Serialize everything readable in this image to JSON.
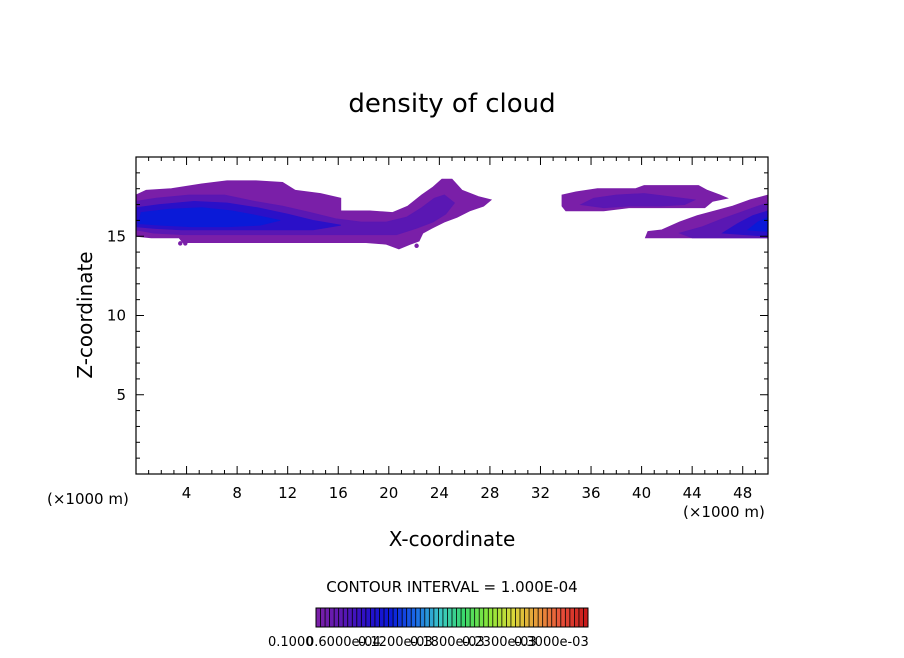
{
  "chart_data": {
    "type": "heatmap",
    "title": "density of cloud",
    "xlabel": "X-coordinate",
    "ylabel": "Z-coordinate",
    "x_unit": "(×1000 m)",
    "x_unit_right": "(×1000 m)",
    "xlim": [
      0,
      50
    ],
    "ylim": [
      0,
      20
    ],
    "x_ticks": [
      4,
      8,
      12,
      16,
      20,
      24,
      28,
      32,
      36,
      40,
      44,
      48
    ],
    "x_tick_labels": [
      "4",
      "8",
      "12",
      "16",
      "20",
      "24",
      "28",
      "32",
      "36",
      "40",
      "44",
      "48"
    ],
    "y_ticks": [
      5,
      10,
      15
    ],
    "y_tick_labels": [
      "5",
      "10",
      "15"
    ],
    "grid": false,
    "contour_interval_label": "CONTOUR INTERVAL = 1.000E-04",
    "colorbar_labels": [
      "0.1000",
      "0.6000e-04",
      "0.1200e-03",
      "0.1800e-03",
      "0.2300e-03",
      "0.3000e-03"
    ],
    "colormap": [
      "#7a1fa8",
      "#5a17b3",
      "#2a10c8",
      "#0a1ad8",
      "#1a6ae8",
      "#3ac8c8",
      "#3ad86a",
      "#8ae83a",
      "#d8d83a",
      "#e89a3a",
      "#e8503a",
      "#c81a1a"
    ],
    "regions": [
      {
        "name": "cloud-left",
        "levels": [
          {
            "color": "#7a1fa8",
            "polygon": [
              [
                0,
                15
              ],
              [
                0,
                17.6
              ],
              [
                0.8,
                17.9
              ],
              [
                2.8,
                18.0
              ],
              [
                5.2,
                18.3
              ],
              [
                7.2,
                18.5
              ],
              [
                9.5,
                18.5
              ],
              [
                11.6,
                18.4
              ],
              [
                12.6,
                17.9
              ],
              [
                14.6,
                17.7
              ],
              [
                16.2,
                17.4
              ],
              [
                16.2,
                16.6
              ],
              [
                18.5,
                16.6
              ],
              [
                20.3,
                16.5
              ],
              [
                21.5,
                16.9
              ],
              [
                22.6,
                17.6
              ],
              [
                23.5,
                18.1
              ],
              [
                24.2,
                18.6
              ],
              [
                25.0,
                18.6
              ],
              [
                25.8,
                17.9
              ],
              [
                27.1,
                17.5
              ],
              [
                28.1,
                17.3
              ],
              [
                27.5,
                16.9
              ],
              [
                26.4,
                16.6
              ],
              [
                25.4,
                16.2
              ],
              [
                24.4,
                15.9
              ],
              [
                23.4,
                15.5
              ],
              [
                22.7,
                15.2
              ],
              [
                22.4,
                14.7
              ],
              [
                21.7,
                14.5
              ],
              [
                20.8,
                14.2
              ],
              [
                19.8,
                14.5
              ],
              [
                18.2,
                14.6
              ],
              [
                14.0,
                14.6
              ],
              [
                10.0,
                14.6
              ],
              [
                5.8,
                14.6
              ],
              [
                4.2,
                14.6
              ],
              [
                3.7,
                14.6
              ],
              [
                3.4,
                14.9
              ],
              [
                2.8,
                14.9
              ],
              [
                1.2,
                14.9
              ]
            ]
          },
          {
            "color": "#5a17b3",
            "polygon": [
              [
                0,
                15.4
              ],
              [
                0,
                17.2
              ],
              [
                1.6,
                17.4
              ],
              [
                4.2,
                17.6
              ],
              [
                7.0,
                17.6
              ],
              [
                9.4,
                17.2
              ],
              [
                11.6,
                16.9
              ],
              [
                13.8,
                16.5
              ],
              [
                15.8,
                16.1
              ],
              [
                17.8,
                15.9
              ],
              [
                19.8,
                15.9
              ],
              [
                21.4,
                16.2
              ],
              [
                22.6,
                16.8
              ],
              [
                23.6,
                17.4
              ],
              [
                24.4,
                17.6
              ],
              [
                25.2,
                17.1
              ],
              [
                24.5,
                16.4
              ],
              [
                23.5,
                15.9
              ],
              [
                22.2,
                15.5
              ],
              [
                20.6,
                15.1
              ],
              [
                18.4,
                15.1
              ],
              [
                15.0,
                15.1
              ],
              [
                11.0,
                15.1
              ],
              [
                7.0,
                15.1
              ],
              [
                3.8,
                15.1
              ],
              [
                1.4,
                15.2
              ]
            ]
          },
          {
            "color": "#2a10c8",
            "polygon": [
              [
                0,
                15.6
              ],
              [
                0,
                16.8
              ],
              [
                1.8,
                17.0
              ],
              [
                4.6,
                17.2
              ],
              [
                7.2,
                17.1
              ],
              [
                9.6,
                16.8
              ],
              [
                12.0,
                16.4
              ],
              [
                14.0,
                16.0
              ],
              [
                16.2,
                15.7
              ],
              [
                14.0,
                15.4
              ],
              [
                11.0,
                15.4
              ],
              [
                7.0,
                15.4
              ],
              [
                3.6,
                15.4
              ],
              [
                1.4,
                15.5
              ]
            ]
          },
          {
            "color": "#0a1ad8",
            "polygon": [
              [
                0.2,
                15.8
              ],
              [
                0.4,
                16.5
              ],
              [
                2.6,
                16.7
              ],
              [
                5.2,
                16.8
              ],
              [
                7.6,
                16.6
              ],
              [
                9.6,
                16.3
              ],
              [
                11.4,
                16.0
              ],
              [
                9.8,
                15.7
              ],
              [
                7.2,
                15.6
              ],
              [
                4.4,
                15.6
              ],
              [
                2.0,
                15.7
              ]
            ]
          }
        ]
      },
      {
        "name": "cloud-middle-right",
        "levels": [
          {
            "color": "#7a1fa8",
            "polygon": [
              [
                33.7,
                17.6
              ],
              [
                34.8,
                17.8
              ],
              [
                36.5,
                18.0
              ],
              [
                39.5,
                18.0
              ],
              [
                40.2,
                18.2
              ],
              [
                44.5,
                18.2
              ],
              [
                45.2,
                17.9
              ],
              [
                46.2,
                17.6
              ],
              [
                46.8,
                17.4
              ],
              [
                45.6,
                17.2
              ],
              [
                45.0,
                16.8
              ],
              [
                41.5,
                16.8
              ],
              [
                39.0,
                16.8
              ],
              [
                37.0,
                16.6
              ],
              [
                35.0,
                16.6
              ],
              [
                34.0,
                16.6
              ],
              [
                33.7,
                16.9
              ]
            ]
          },
          {
            "color": "#5a17b3",
            "polygon": [
              [
                35.2,
                17.0
              ],
              [
                36.2,
                17.4
              ],
              [
                38.0,
                17.6
              ],
              [
                40.2,
                17.7
              ],
              [
                42.2,
                17.5
              ],
              [
                44.2,
                17.3
              ],
              [
                43.4,
                17.0
              ],
              [
                41.5,
                16.9
              ],
              [
                39.0,
                16.9
              ],
              [
                37.0,
                16.8
              ]
            ]
          }
        ]
      },
      {
        "name": "cloud-far-right",
        "levels": [
          {
            "color": "#7a1fa8",
            "polygon": [
              [
                40.3,
                14.9
              ],
              [
                40.5,
                15.3
              ],
              [
                41.6,
                15.4
              ],
              [
                43.0,
                15.9
              ],
              [
                44.4,
                16.3
              ],
              [
                45.8,
                16.6
              ],
              [
                47.2,
                16.9
              ],
              [
                48.6,
                17.3
              ],
              [
                50,
                17.6
              ],
              [
                50,
                14.9
              ]
            ]
          },
          {
            "color": "#5a17b3",
            "polygon": [
              [
                43.0,
                15.2
              ],
              [
                44.8,
                15.6
              ],
              [
                46.4,
                16.1
              ],
              [
                47.8,
                16.5
              ],
              [
                49.2,
                16.9
              ],
              [
                50,
                17.1
              ],
              [
                50,
                14.9
              ],
              [
                44.0,
                14.9
              ]
            ]
          },
          {
            "color": "#2a10c8",
            "polygon": [
              [
                46.4,
                15.2
              ],
              [
                47.6,
                15.8
              ],
              [
                48.8,
                16.3
              ],
              [
                50,
                16.6
              ],
              [
                50,
                15.0
              ]
            ]
          },
          {
            "color": "#0a1ad8",
            "polygon": [
              [
                48.4,
                15.4
              ],
              [
                49.2,
                15.9
              ],
              [
                50,
                16.2
              ],
              [
                50,
                15.3
              ]
            ]
          }
        ]
      }
    ],
    "isolated_points": [
      [
        3.5,
        14.55
      ],
      [
        3.9,
        14.55
      ],
      [
        22.2,
        14.4
      ]
    ]
  }
}
